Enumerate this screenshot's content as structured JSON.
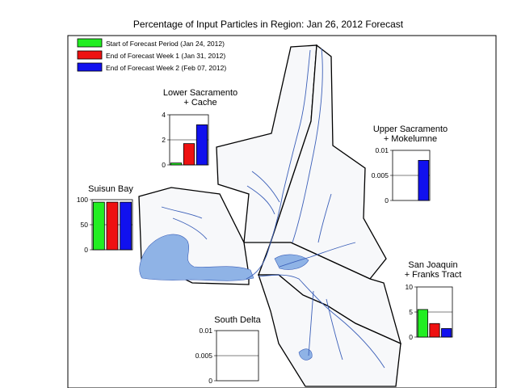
{
  "title": "Percentage of Input Particles in Region: Jan 26, 2012 Forecast",
  "legend": [
    {
      "label": "Start of Forecast Period (Jan 24, 2012)",
      "color": "#22ee22"
    },
    {
      "label": "End of Forecast Week 1 (Jan 31, 2012)",
      "color": "#ee1111"
    },
    {
      "label": "End of Forecast Week 2 (Feb 07, 2012)",
      "color": "#1111ee"
    }
  ],
  "chart_data": [
    {
      "type": "bar",
      "title_lines": [
        "Lower Sacramento",
        "+ Cache"
      ],
      "series": [
        {
          "name": "Start of Forecast Period (Jan 24, 2012)",
          "values": [
            0.15
          ]
        },
        {
          "name": "End of Forecast Week 1 (Jan 31, 2012)",
          "values": [
            1.7
          ]
        },
        {
          "name": "End of Forecast Week 2 (Feb 07, 2012)",
          "values": [
            3.2
          ]
        }
      ],
      "ylim": [
        0,
        4
      ],
      "yticks": [
        "0",
        "2",
        "4"
      ]
    },
    {
      "type": "bar",
      "title_lines": [
        "Upper Sacramento",
        "+ Mokelumne"
      ],
      "series": [
        {
          "name": "Start of Forecast Period (Jan 24, 2012)",
          "values": [
            0
          ]
        },
        {
          "name": "End of Forecast Week 1 (Jan 31, 2012)",
          "values": [
            0
          ]
        },
        {
          "name": "End of Forecast Week 2 (Feb 07, 2012)",
          "values": [
            0.008
          ]
        }
      ],
      "ylim": [
        0,
        0.01
      ],
      "yticks": [
        "0",
        "0.005",
        "0.01"
      ]
    },
    {
      "type": "bar",
      "title_lines": [
        "Suisun Bay"
      ],
      "series": [
        {
          "name": "Start of Forecast Period (Jan 24, 2012)",
          "values": [
            95
          ]
        },
        {
          "name": "End of Forecast Week 1 (Jan 31, 2012)",
          "values": [
            95
          ]
        },
        {
          "name": "End of Forecast Week 2 (Feb 07, 2012)",
          "values": [
            95
          ]
        }
      ],
      "ylim": [
        0,
        100
      ],
      "yticks": [
        "0",
        "50",
        "100"
      ]
    },
    {
      "type": "bar",
      "title_lines": [
        "San Joaquin",
        "+ Franks Tract"
      ],
      "series": [
        {
          "name": "Start of Forecast Period (Jan 24, 2012)",
          "values": [
            5.5
          ]
        },
        {
          "name": "End of Forecast Week 1 (Jan 31, 2012)",
          "values": [
            2.7
          ]
        },
        {
          "name": "End of Forecast Week 2 (Feb 07, 2012)",
          "values": [
            1.7
          ]
        }
      ],
      "ylim": [
        0,
        10
      ],
      "yticks": [
        "0",
        "5",
        "10"
      ]
    },
    {
      "type": "bar",
      "title_lines": [
        "South Delta"
      ],
      "series": [
        {
          "name": "Start of Forecast Period (Jan 24, 2012)",
          "values": [
            0
          ]
        },
        {
          "name": "End of Forecast Week 1 (Jan 31, 2012)",
          "values": [
            0
          ]
        },
        {
          "name": "End of Forecast Week 2 (Feb 07, 2012)",
          "values": [
            0
          ]
        }
      ],
      "ylim": [
        0,
        0.01
      ],
      "yticks": [
        "0",
        "0.005",
        "0.01"
      ]
    }
  ]
}
